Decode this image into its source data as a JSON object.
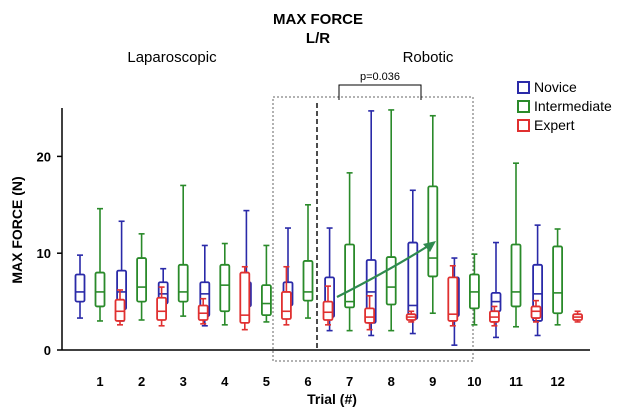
{
  "chart_data": {
    "type": "box",
    "title": "MAX FORCE",
    "subtitle": "L/R",
    "xlabel": "Trial (#)",
    "ylabel": "MAX FORCE (N)",
    "ylim": [
      0,
      25
    ],
    "yticks": [
      0,
      10,
      20
    ],
    "categories": [
      "1",
      "2",
      "3",
      "4",
      "5",
      "6",
      "7",
      "8",
      "9",
      "10",
      "11",
      "12"
    ],
    "group_labels": [
      "Laparoscopic",
      "Robotic"
    ],
    "legend_position": "top-right",
    "annotation": "p=0.036",
    "series": [
      {
        "name": "Novice",
        "color": "#2a2aa8",
        "boxes": [
          {
            "min": 3.3,
            "q1": 5.0,
            "median": 6.0,
            "q3": 7.8,
            "max": 9.8
          },
          {
            "min": 3.0,
            "q1": 4.2,
            "median": 6.0,
            "q3": 8.2,
            "max": 13.3
          },
          {
            "min": 3.8,
            "q1": 4.8,
            "median": 5.8,
            "q3": 7.0,
            "max": 8.4
          },
          {
            "min": 2.5,
            "q1": 3.5,
            "median": 5.8,
            "q3": 7.0,
            "max": 10.8
          },
          {
            "min": 3.2,
            "q1": 4.5,
            "median": 5.3,
            "q3": 7.0,
            "max": 14.4
          },
          {
            "min": 3.5,
            "q1": 4.6,
            "median": 5.8,
            "q3": 7.0,
            "max": 12.6
          },
          {
            "min": 2.0,
            "q1": 3.4,
            "median": 4.8,
            "q3": 7.5,
            "max": 12.6
          },
          {
            "min": 1.5,
            "q1": 2.8,
            "median": 6.0,
            "q3": 9.3,
            "max": 24.7
          },
          {
            "min": 1.7,
            "q1": 3.2,
            "median": 4.6,
            "q3": 11.1,
            "max": 16.5
          },
          {
            "min": 0.5,
            "q1": 3.5,
            "median": 6.0,
            "q3": 7.5,
            "max": 9.5
          },
          {
            "min": 1.3,
            "q1": 4.0,
            "median": 5.0,
            "q3": 5.9,
            "max": 11.1
          },
          {
            "min": 1.5,
            "q1": 3.0,
            "median": 5.8,
            "q3": 8.8,
            "max": 12.9
          }
        ]
      },
      {
        "name": "Intermediate",
        "color": "#2a8a2a",
        "boxes": [
          {
            "min": 3.0,
            "q1": 4.5,
            "median": 6.0,
            "q3": 8.0,
            "max": 14.6
          },
          {
            "min": 3.1,
            "q1": 5.0,
            "median": 6.5,
            "q3": 9.5,
            "max": 12.0
          },
          {
            "min": 3.5,
            "q1": 5.0,
            "median": 6.0,
            "q3": 8.8,
            "max": 17.0
          },
          {
            "min": 2.6,
            "q1": 4.0,
            "median": 6.7,
            "q3": 8.8,
            "max": 11.0
          },
          {
            "min": 2.9,
            "q1": 3.6,
            "median": 4.8,
            "q3": 6.7,
            "max": 10.8
          },
          {
            "min": 3.3,
            "q1": 5.1,
            "median": 6.0,
            "q3": 9.2,
            "max": 15.0
          },
          {
            "min": 2.0,
            "q1": 4.4,
            "median": 5.0,
            "q3": 10.9,
            "max": 18.3
          },
          {
            "min": 2.0,
            "q1": 4.7,
            "median": 6.5,
            "q3": 9.6,
            "max": 24.8
          },
          {
            "min": 3.8,
            "q1": 7.6,
            "median": 9.5,
            "q3": 16.9,
            "max": 24.2
          },
          {
            "min": 2.6,
            "q1": 4.3,
            "median": 6.0,
            "q3": 7.8,
            "max": 9.9
          },
          {
            "min": 2.4,
            "q1": 4.5,
            "median": 6.0,
            "q3": 10.9,
            "max": 19.3
          },
          {
            "min": 2.6,
            "q1": 3.8,
            "median": 5.9,
            "q3": 10.7,
            "max": 12.5
          }
        ]
      },
      {
        "name": "Expert",
        "color": "#e03030",
        "boxes": [
          {
            "min": 2.6,
            "q1": 3.0,
            "median": 4.0,
            "q3": 5.2,
            "max": 6.2
          },
          {
            "min": 2.5,
            "q1": 3.1,
            "median": 4.0,
            "q3": 5.4,
            "max": 6.5
          },
          {
            "min": 2.7,
            "q1": 3.1,
            "median": 3.8,
            "q3": 4.6,
            "max": 5.3
          },
          {
            "min": 2.1,
            "q1": 2.8,
            "median": 3.6,
            "q3": 8.0,
            "max": 8.6
          },
          {
            "min": 2.6,
            "q1": 3.2,
            "median": 4.0,
            "q3": 6.0,
            "max": 8.6
          },
          {
            "min": 2.6,
            "q1": 3.1,
            "median": 3.9,
            "q3": 5.0,
            "max": 6.6
          },
          {
            "min": 2.1,
            "q1": 2.8,
            "median": 3.4,
            "q3": 4.3,
            "max": 5.6
          },
          {
            "min": 2.9,
            "q1": 3.1,
            "median": 3.4,
            "q3": 3.7,
            "max": 4.0
          },
          {
            "min": 2.5,
            "q1": 3.0,
            "median": 3.7,
            "q3": 7.5,
            "max": 8.7
          },
          {
            "min": 2.5,
            "q1": 2.9,
            "median": 3.4,
            "q3": 4.0,
            "max": 4.5
          },
          {
            "min": 2.9,
            "q1": 3.3,
            "median": 4.0,
            "q3": 4.5,
            "max": 5.1
          },
          {
            "min": 2.9,
            "q1": 3.1,
            "median": 3.4,
            "q3": 3.7,
            "max": 4.0
          }
        ]
      }
    ]
  }
}
